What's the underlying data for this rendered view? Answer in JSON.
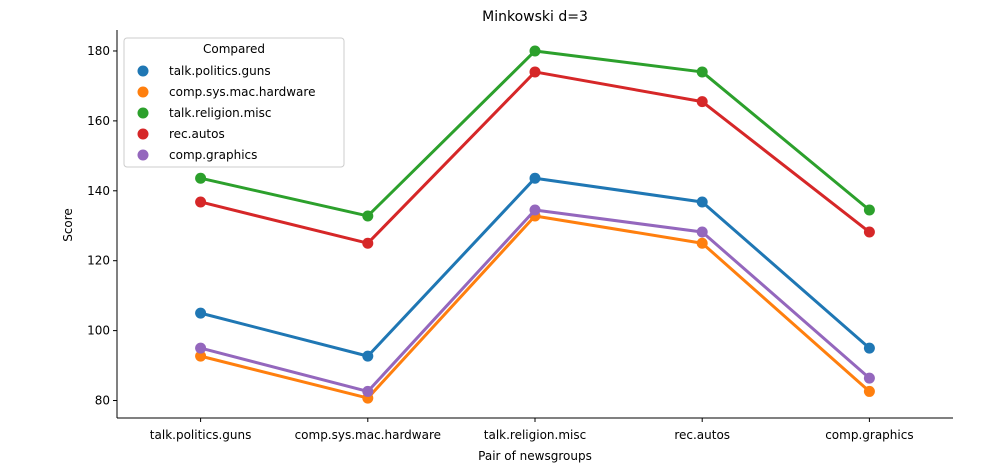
{
  "chart_data": {
    "type": "line",
    "title": "Minkowski d=3",
    "xlabel": "Pair of newsgroups",
    "ylabel": "Score",
    "categories": [
      "talk.politics.guns",
      "comp.sys.mac.hardware",
      "talk.religion.misc",
      "rec.autos",
      "comp.graphics"
    ],
    "ylim": [
      75,
      186
    ],
    "yticks": [
      80,
      100,
      120,
      140,
      160,
      180
    ],
    "grid": false,
    "legend": {
      "title": "Compared",
      "placement": "top-left"
    },
    "series": [
      {
        "name": "talk.politics.guns",
        "color": "#1f77b4",
        "values": [
          105.0,
          92.7,
          143.6,
          136.8,
          95.0
        ]
      },
      {
        "name": "comp.sys.mac.hardware",
        "color": "#ff7f0e",
        "values": [
          92.7,
          80.7,
          132.8,
          125.0,
          82.6
        ]
      },
      {
        "name": "talk.religion.misc",
        "color": "#2ca02c",
        "values": [
          143.6,
          132.8,
          180.0,
          174.0,
          134.5
        ]
      },
      {
        "name": "rec.autos",
        "color": "#d62728",
        "values": [
          136.8,
          125.0,
          174.0,
          165.5,
          128.2
        ]
      },
      {
        "name": "comp.graphics",
        "color": "#9467bd",
        "values": [
          95.0,
          82.6,
          134.5,
          128.2,
          86.4
        ]
      }
    ]
  }
}
